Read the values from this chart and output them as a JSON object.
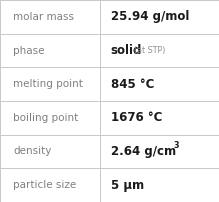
{
  "rows": [
    {
      "label": "molar mass",
      "value": "25.94 g/mol",
      "superscript": null,
      "note": null
    },
    {
      "label": "phase",
      "value": "solid",
      "superscript": null,
      "note": "(at STP)"
    },
    {
      "label": "melting point",
      "value": "845 °C",
      "superscript": null,
      "note": null
    },
    {
      "label": "boiling point",
      "value": "1676 °C",
      "superscript": null,
      "note": null
    },
    {
      "label": "density",
      "value": "2.64 g/cm",
      "superscript": "3",
      "note": null
    },
    {
      "label": "particle size",
      "value": "5 μm",
      "superscript": null,
      "note": null
    }
  ],
  "background_color": "#ffffff",
  "border_color": "#c8c8c8",
  "label_color": "#808080",
  "value_color": "#1a1a1a",
  "note_color": "#909090",
  "label_fontsize": 7.5,
  "value_fontsize": 8.5,
  "note_fontsize": 5.8,
  "superscript_fontsize": 5.8,
  "col_split": 0.455
}
